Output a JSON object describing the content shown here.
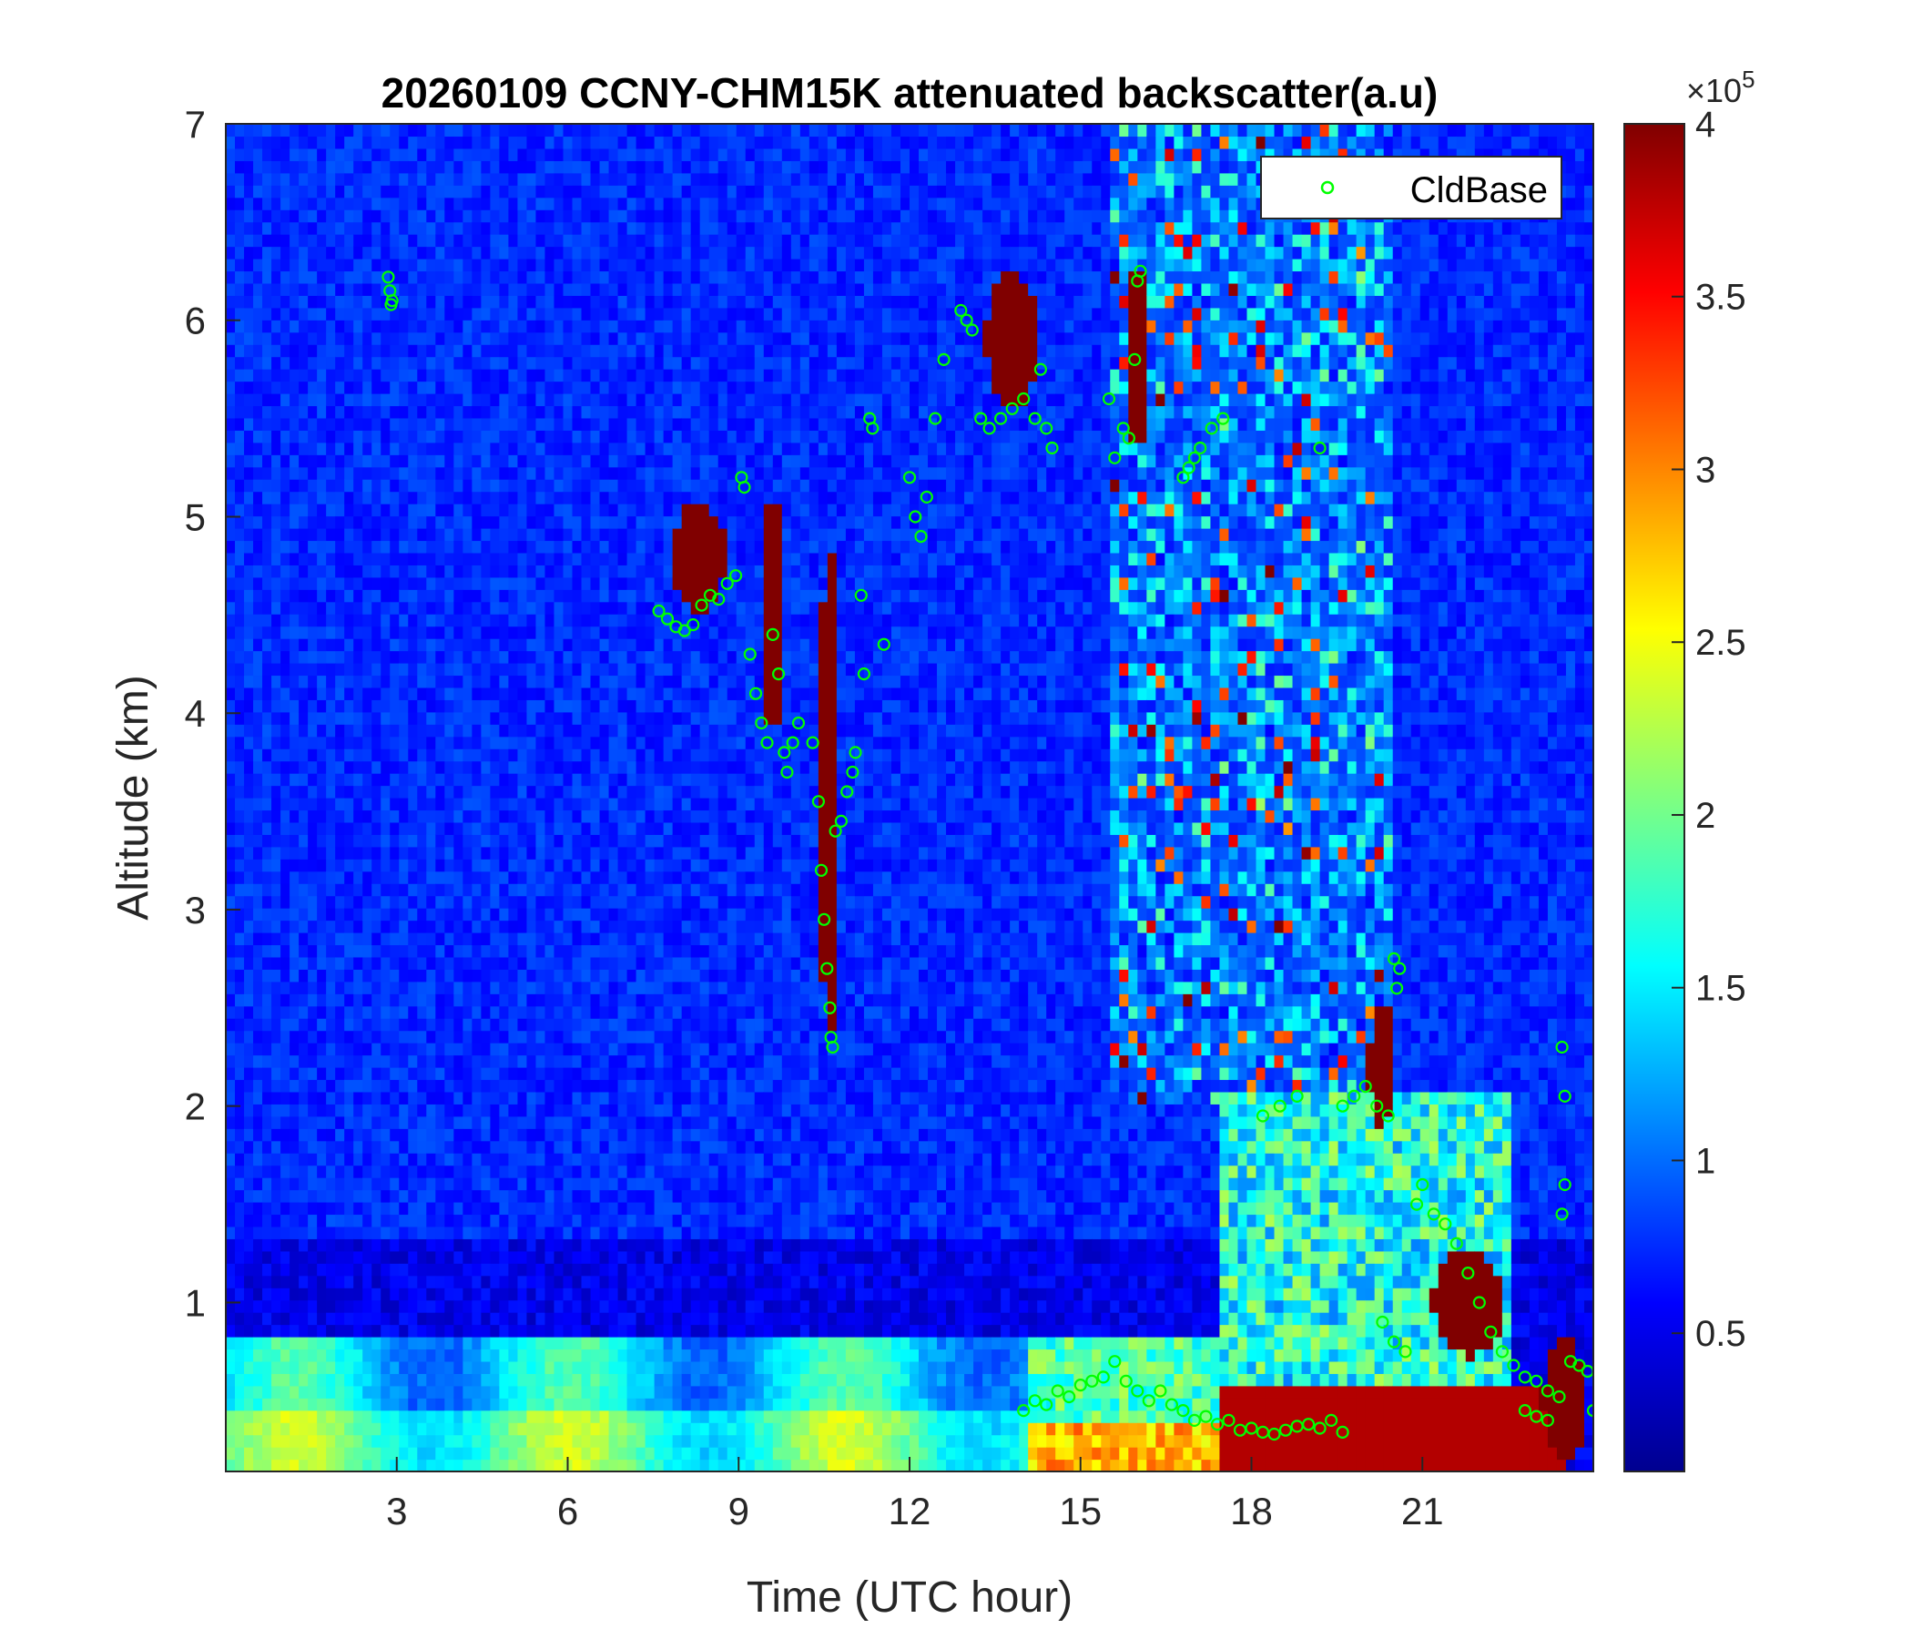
{
  "chart_data": {
    "type": "heatmap",
    "title": "20260109 CCNY-CHM15K attenuated backscatter(a.u)",
    "xlabel": "Time (UTC hour)",
    "ylabel": "Altitude (km)",
    "xlim": [
      0,
      24
    ],
    "ylim": [
      0.14,
      7
    ],
    "xticks": [
      3,
      6,
      9,
      12,
      15,
      18,
      21
    ],
    "yticks": [
      1,
      2,
      3,
      4,
      5,
      6,
      7
    ],
    "colormap": "jet",
    "colorbar": {
      "limits": [
        0.1,
        4
      ],
      "ticks": [
        0.5,
        1,
        1.5,
        2,
        2.5,
        3,
        3.5,
        4
      ],
      "tick_labels": [
        "0.5",
        "1",
        "1.5",
        "2",
        "2.5",
        "3",
        "3.5",
        "4"
      ],
      "multiplier": "×10",
      "exponent": "5"
    },
    "legend": {
      "entries": [
        "CldBase"
      ],
      "placement": "top-right"
    },
    "series": [
      {
        "name": "CldBase",
        "marker": "circle-open",
        "color": "#00ff00",
        "points": [
          [
            2.85,
            6.22
          ],
          [
            2.88,
            6.15
          ],
          [
            2.9,
            6.08
          ],
          [
            2.92,
            6.1
          ],
          [
            7.6,
            4.52
          ],
          [
            7.75,
            4.48
          ],
          [
            7.9,
            4.44
          ],
          [
            8.05,
            4.42
          ],
          [
            8.2,
            4.45
          ],
          [
            8.35,
            4.55
          ],
          [
            8.5,
            4.6
          ],
          [
            8.65,
            4.58
          ],
          [
            8.8,
            4.66
          ],
          [
            8.95,
            4.7
          ],
          [
            9.05,
            5.2
          ],
          [
            9.1,
            5.15
          ],
          [
            9.2,
            4.3
          ],
          [
            9.3,
            4.1
          ],
          [
            9.4,
            3.95
          ],
          [
            9.5,
            3.85
          ],
          [
            9.6,
            4.4
          ],
          [
            9.7,
            4.2
          ],
          [
            9.8,
            3.8
          ],
          [
            9.85,
            3.7
          ],
          [
            9.95,
            3.85
          ],
          [
            10.05,
            3.95
          ],
          [
            10.3,
            3.85
          ],
          [
            10.4,
            3.55
          ],
          [
            10.45,
            3.2
          ],
          [
            10.5,
            2.95
          ],
          [
            10.55,
            2.7
          ],
          [
            10.6,
            2.5
          ],
          [
            10.62,
            2.35
          ],
          [
            10.65,
            2.3
          ],
          [
            10.7,
            3.4
          ],
          [
            10.8,
            3.45
          ],
          [
            10.9,
            3.6
          ],
          [
            11.0,
            3.7
          ],
          [
            11.05,
            3.8
          ],
          [
            11.15,
            4.6
          ],
          [
            11.2,
            4.2
          ],
          [
            11.3,
            5.5
          ],
          [
            11.35,
            5.45
          ],
          [
            11.55,
            4.35
          ],
          [
            12.0,
            5.2
          ],
          [
            12.1,
            5.0
          ],
          [
            12.2,
            4.9
          ],
          [
            12.3,
            5.1
          ],
          [
            12.45,
            5.5
          ],
          [
            12.6,
            5.8
          ],
          [
            12.9,
            6.05
          ],
          [
            13.0,
            6.0
          ],
          [
            13.1,
            5.95
          ],
          [
            13.25,
            5.5
          ],
          [
            13.4,
            5.45
          ],
          [
            13.6,
            5.5
          ],
          [
            13.8,
            5.55
          ],
          [
            14.0,
            5.6
          ],
          [
            14.2,
            5.5
          ],
          [
            14.3,
            5.75
          ],
          [
            14.4,
            5.45
          ],
          [
            14.5,
            5.35
          ],
          [
            14.0,
            0.45
          ],
          [
            14.2,
            0.5
          ],
          [
            14.4,
            0.48
          ],
          [
            14.6,
            0.55
          ],
          [
            14.8,
            0.52
          ],
          [
            15.0,
            0.58
          ],
          [
            15.2,
            0.6
          ],
          [
            15.4,
            0.62
          ],
          [
            15.6,
            0.7
          ],
          [
            15.8,
            0.6
          ],
          [
            15.5,
            5.6
          ],
          [
            15.6,
            5.3
          ],
          [
            15.75,
            5.45
          ],
          [
            15.85,
            5.4
          ],
          [
            15.95,
            5.8
          ],
          [
            16.0,
            6.2
          ],
          [
            16.05,
            6.25
          ],
          [
            16.0,
            0.55
          ],
          [
            16.2,
            0.5
          ],
          [
            16.4,
            0.55
          ],
          [
            16.6,
            0.48
          ],
          [
            16.8,
            0.45
          ],
          [
            16.8,
            5.2
          ],
          [
            16.9,
            5.25
          ],
          [
            17.0,
            5.3
          ],
          [
            17.1,
            5.35
          ],
          [
            17.3,
            5.45
          ],
          [
            17.5,
            5.5
          ],
          [
            17.0,
            0.4
          ],
          [
            17.2,
            0.42
          ],
          [
            17.4,
            0.38
          ],
          [
            17.6,
            0.4
          ],
          [
            17.8,
            0.35
          ],
          [
            18.0,
            0.36
          ],
          [
            18.2,
            0.34
          ],
          [
            18.4,
            0.33
          ],
          [
            18.6,
            0.35
          ],
          [
            18.8,
            0.37
          ],
          [
            19.0,
            0.38
          ],
          [
            19.2,
            0.36
          ],
          [
            19.4,
            0.4
          ],
          [
            19.6,
            0.34
          ],
          [
            18.2,
            1.95
          ],
          [
            18.5,
            2.0
          ],
          [
            18.8,
            2.05
          ],
          [
            19.2,
            5.35
          ],
          [
            19.6,
            2.0
          ],
          [
            19.8,
            2.05
          ],
          [
            20.0,
            2.1
          ],
          [
            20.2,
            2.0
          ],
          [
            20.4,
            1.95
          ],
          [
            20.5,
            2.75
          ],
          [
            20.55,
            2.6
          ],
          [
            20.6,
            2.7
          ],
          [
            20.3,
            0.9
          ],
          [
            20.5,
            0.8
          ],
          [
            20.7,
            0.75
          ],
          [
            20.9,
            1.5
          ],
          [
            21.0,
            1.6
          ],
          [
            21.2,
            1.45
          ],
          [
            21.4,
            1.4
          ],
          [
            21.6,
            1.3
          ],
          [
            21.8,
            1.15
          ],
          [
            22.0,
            1.0
          ],
          [
            22.2,
            0.85
          ],
          [
            22.4,
            0.75
          ],
          [
            22.6,
            0.68
          ],
          [
            22.8,
            0.62
          ],
          [
            23.0,
            0.6
          ],
          [
            23.2,
            0.55
          ],
          [
            23.4,
            0.52
          ],
          [
            23.6,
            0.7
          ],
          [
            23.75,
            0.68
          ],
          [
            23.9,
            0.65
          ],
          [
            22.8,
            0.45
          ],
          [
            23.0,
            0.42
          ],
          [
            23.2,
            0.4
          ],
          [
            23.45,
            2.3
          ],
          [
            23.5,
            2.05
          ],
          [
            23.5,
            1.6
          ],
          [
            23.45,
            1.45
          ],
          [
            24.0,
            0.45
          ]
        ]
      }
    ]
  }
}
